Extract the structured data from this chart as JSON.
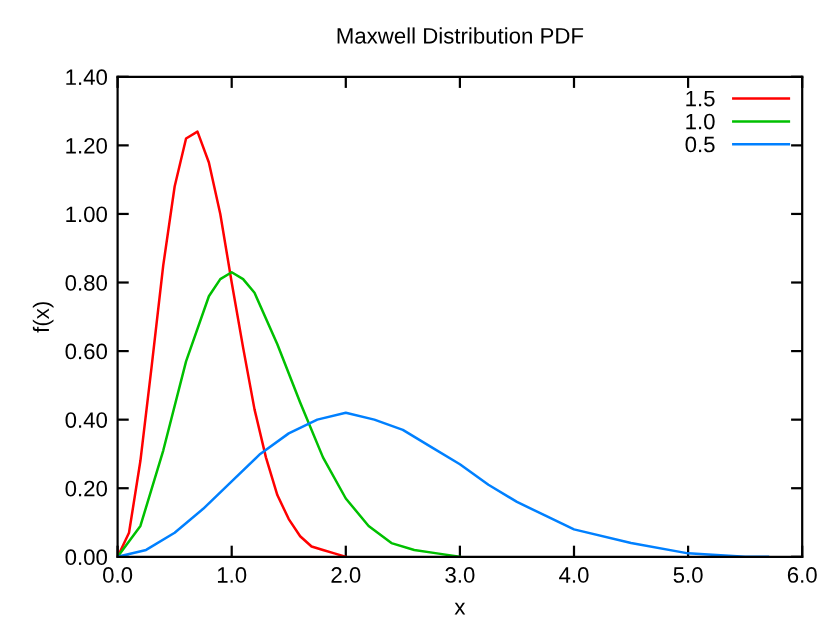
{
  "chart_data": {
    "type": "line",
    "title": "Maxwell Distribution PDF",
    "xlabel": "x",
    "ylabel": "f(x)",
    "xlim": [
      0,
      6
    ],
    "ylim": [
      0,
      1.4
    ],
    "xticks": [
      {
        "value": 0,
        "label": "0.0"
      },
      {
        "value": 1,
        "label": "1.0"
      },
      {
        "value": 2,
        "label": "2.0"
      },
      {
        "value": 3,
        "label": "3.0"
      },
      {
        "value": 4,
        "label": "4.0"
      },
      {
        "value": 5,
        "label": "5.0"
      },
      {
        "value": 6,
        "label": "6.0"
      }
    ],
    "yticks": [
      {
        "value": 0,
        "label": "0.00"
      },
      {
        "value": 0.2,
        "label": "0.20"
      },
      {
        "value": 0.4,
        "label": "0.40"
      },
      {
        "value": 0.6,
        "label": "0.60"
      },
      {
        "value": 0.8,
        "label": "0.80"
      },
      {
        "value": 1.0,
        "label": "1.00"
      },
      {
        "value": 1.2,
        "label": "1.20"
      },
      {
        "value": 1.4,
        "label": "1.40"
      }
    ],
    "grid": false,
    "legend": "top right",
    "marker": "none",
    "line_style": "solid",
    "series": [
      {
        "name": "1.5",
        "color": "#ff0000",
        "x": [
          0,
          0.1,
          0.2,
          0.3,
          0.4,
          0.5,
          0.6,
          0.7,
          0.8,
          0.9,
          1.0,
          1.1,
          1.2,
          1.3,
          1.4,
          1.5,
          1.6,
          1.7,
          1.8,
          1.9,
          2.0
        ],
        "values": [
          0,
          0.07,
          0.28,
          0.56,
          0.85,
          1.08,
          1.22,
          1.24,
          1.15,
          1.0,
          0.8,
          0.61,
          0.43,
          0.29,
          0.18,
          0.11,
          0.06,
          0.03,
          0.02,
          0.01,
          0.0
        ]
      },
      {
        "name": "1.0",
        "color": "#00c000",
        "x": [
          0,
          0.2,
          0.4,
          0.6,
          0.8,
          0.9,
          1.0,
          1.1,
          1.2,
          1.4,
          1.6,
          1.8,
          2.0,
          2.2,
          2.4,
          2.6,
          2.8,
          3.0
        ],
        "values": [
          0,
          0.09,
          0.31,
          0.57,
          0.76,
          0.81,
          0.83,
          0.81,
          0.77,
          0.62,
          0.45,
          0.29,
          0.17,
          0.09,
          0.04,
          0.02,
          0.01,
          0.0
        ]
      },
      {
        "name": "0.5",
        "color": "#0080ff",
        "x": [
          0,
          0.25,
          0.5,
          0.75,
          1.0,
          1.25,
          1.5,
          1.75,
          2.0,
          2.25,
          2.5,
          2.75,
          3.0,
          3.25,
          3.5,
          3.75,
          4.0,
          4.5,
          5.0,
          5.5,
          5.7
        ],
        "values": [
          0,
          0.02,
          0.07,
          0.14,
          0.22,
          0.3,
          0.36,
          0.4,
          0.42,
          0.4,
          0.37,
          0.32,
          0.27,
          0.21,
          0.16,
          0.12,
          0.08,
          0.04,
          0.01,
          0.0,
          0.0
        ]
      }
    ]
  }
}
